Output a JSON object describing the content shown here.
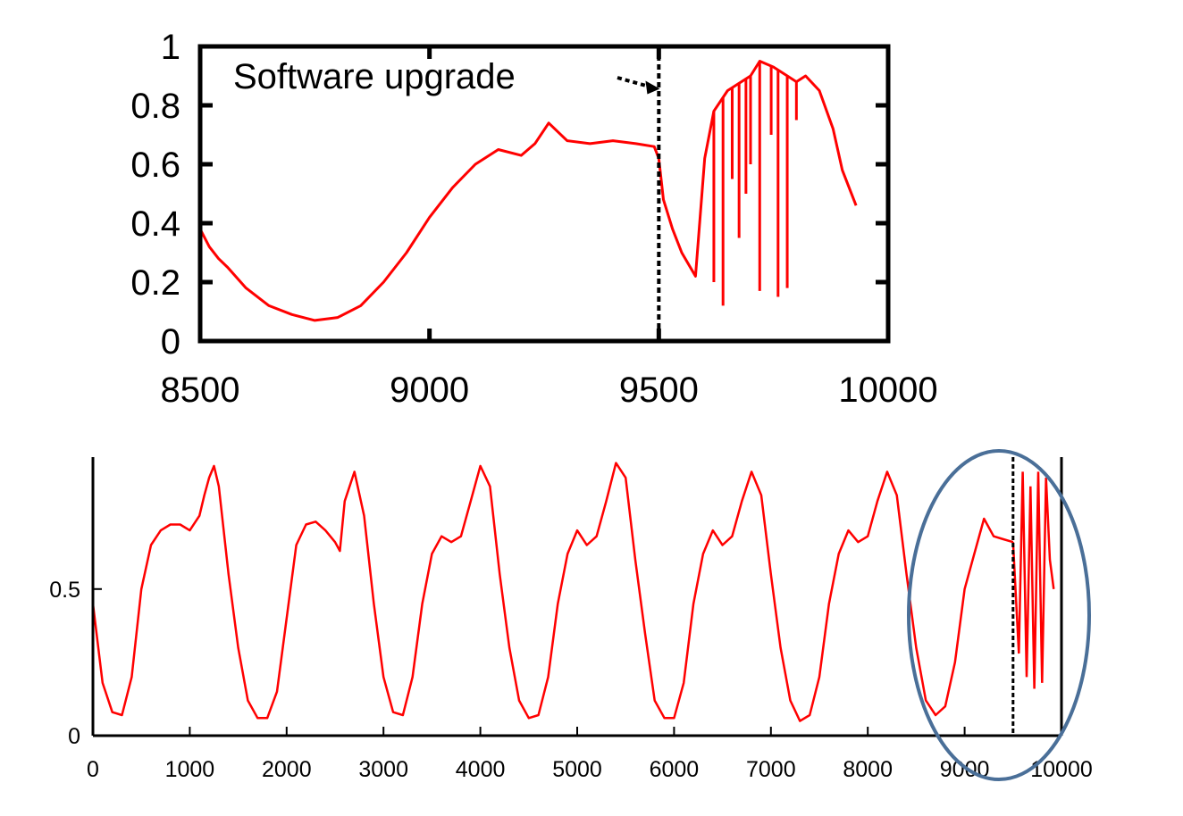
{
  "chart_data": [
    {
      "id": "zoom",
      "type": "line",
      "xlim": [
        8500,
        10000
      ],
      "ylim": [
        0,
        1
      ],
      "x_ticks": [
        8500,
        9000,
        9500,
        10000
      ],
      "x_tick_labels": [
        "8500",
        "9000",
        "9500",
        "10000"
      ],
      "y_ticks": [
        0,
        0.2,
        0.4,
        0.6,
        0.8,
        1
      ],
      "y_tick_labels": [
        "0",
        "0.2",
        "0.4",
        "0.6",
        "0.8",
        "1"
      ],
      "series_color": "#ff0000",
      "series": [
        {
          "x": [
            8500,
            8520,
            8540,
            8560,
            8600,
            8650,
            8700,
            8750,
            8800,
            8850,
            8900,
            8950,
            9000,
            9050,
            9100,
            9150,
            9200,
            9230,
            9260,
            9300,
            9350,
            9400,
            9450,
            9490,
            9500,
            9510,
            9530,
            9550,
            9580,
            9600,
            9620,
            9650,
            9680,
            9700,
            9720,
            9750,
            9780,
            9800,
            9820,
            9850,
            9880,
            9900,
            9930
          ],
          "y": [
            0.38,
            0.32,
            0.28,
            0.25,
            0.18,
            0.12,
            0.09,
            0.07,
            0.08,
            0.12,
            0.2,
            0.3,
            0.42,
            0.52,
            0.6,
            0.65,
            0.63,
            0.67,
            0.74,
            0.68,
            0.67,
            0.68,
            0.67,
            0.66,
            0.62,
            0.48,
            0.38,
            0.3,
            0.22,
            0.62,
            0.78,
            0.85,
            0.88,
            0.9,
            0.95,
            0.93,
            0.9,
            0.88,
            0.9,
            0.85,
            0.72,
            0.58,
            0.46
          ]
        }
      ],
      "spikes": [
        {
          "x": 9620,
          "y": 0.2
        },
        {
          "x": 9640,
          "y": 0.12
        },
        {
          "x": 9660,
          "y": 0.55
        },
        {
          "x": 9675,
          "y": 0.35
        },
        {
          "x": 9690,
          "y": 0.5
        },
        {
          "x": 9700,
          "y": 0.6
        },
        {
          "x": 9720,
          "y": 0.17
        },
        {
          "x": 9745,
          "y": 0.7
        },
        {
          "x": 9760,
          "y": 0.15
        },
        {
          "x": 9780,
          "y": 0.18
        },
        {
          "x": 9800,
          "y": 0.75
        }
      ],
      "upgrade_x": 9500,
      "annotation": {
        "text": "Software upgrade",
        "x": 8650,
        "y": 0.9,
        "arrow_to": {
          "x": 9510,
          "y": 0.85
        }
      }
    },
    {
      "id": "full",
      "type": "line",
      "xlim": [
        0,
        10000
      ],
      "ylim": [
        0,
        0.95
      ],
      "x_ticks": [
        0,
        1000,
        2000,
        3000,
        4000,
        5000,
        6000,
        7000,
        8000,
        9000,
        10000
      ],
      "x_tick_labels": [
        "0",
        "1000",
        "2000",
        "3000",
        "4000",
        "5000",
        "6000",
        "7000",
        "8000",
        "9000",
        "10000"
      ],
      "y_ticks": [
        0,
        0.5
      ],
      "y_tick_labels": [
        "0",
        "0.5"
      ],
      "series_color": "#ff0000",
      "series": [
        {
          "x": [
            0,
            100,
            200,
            300,
            400,
            500,
            600,
            700,
            800,
            900,
            1000,
            1100,
            1150,
            1200,
            1250,
            1300,
            1400,
            1500,
            1600,
            1700,
            1800,
            1900,
            2000,
            2100,
            2200,
            2300,
            2400,
            2500,
            2550,
            2600,
            2700,
            2800,
            2900,
            3000,
            3100,
            3200,
            3300,
            3400,
            3500,
            3600,
            3700,
            3800,
            3900,
            4000,
            4100,
            4200,
            4300,
            4400,
            4500,
            4600,
            4700,
            4800,
            4900,
            5000,
            5100,
            5200,
            5300,
            5400,
            5500,
            5600,
            5700,
            5800,
            5900,
            6000,
            6100,
            6200,
            6300,
            6400,
            6500,
            6600,
            6700,
            6800,
            6900,
            7000,
            7100,
            7200,
            7300,
            7400,
            7500,
            7600,
            7700,
            7800,
            7900,
            8000,
            8100,
            8200,
            8300,
            8400,
            8500,
            8600,
            8700,
            8800,
            8900,
            9000,
            9100,
            9200,
            9300,
            9400,
            9500
          ],
          "y": [
            0.45,
            0.18,
            0.08,
            0.07,
            0.2,
            0.5,
            0.65,
            0.7,
            0.72,
            0.72,
            0.7,
            0.75,
            0.82,
            0.88,
            0.92,
            0.85,
            0.55,
            0.3,
            0.12,
            0.06,
            0.06,
            0.15,
            0.4,
            0.65,
            0.72,
            0.73,
            0.7,
            0.66,
            0.63,
            0.8,
            0.9,
            0.75,
            0.45,
            0.2,
            0.08,
            0.07,
            0.2,
            0.45,
            0.62,
            0.68,
            0.66,
            0.68,
            0.8,
            0.92,
            0.85,
            0.55,
            0.3,
            0.12,
            0.06,
            0.07,
            0.2,
            0.45,
            0.62,
            0.7,
            0.65,
            0.68,
            0.8,
            0.93,
            0.88,
            0.6,
            0.35,
            0.12,
            0.06,
            0.06,
            0.18,
            0.45,
            0.62,
            0.7,
            0.65,
            0.68,
            0.8,
            0.9,
            0.82,
            0.55,
            0.3,
            0.12,
            0.05,
            0.07,
            0.2,
            0.45,
            0.62,
            0.7,
            0.66,
            0.68,
            0.8,
            0.9,
            0.82,
            0.55,
            0.3,
            0.12,
            0.07,
            0.1,
            0.25,
            0.5,
            0.62,
            0.74,
            0.68,
            0.67,
            0.66
          ]
        }
      ],
      "spikes": [
        {
          "x": 9560,
          "y": 0.28
        },
        {
          "x": 9600,
          "y": 0.9
        },
        {
          "x": 9640,
          "y": 0.2
        },
        {
          "x": 9680,
          "y": 0.85
        },
        {
          "x": 9720,
          "y": 0.16
        },
        {
          "x": 9760,
          "y": 0.9
        },
        {
          "x": 9800,
          "y": 0.18
        },
        {
          "x": 9840,
          "y": 0.88
        },
        {
          "x": 9880,
          "y": 0.6
        },
        {
          "x": 9920,
          "y": 0.5
        }
      ],
      "upgrade_x": 9500,
      "highlight_color": "#4a6f98"
    }
  ]
}
